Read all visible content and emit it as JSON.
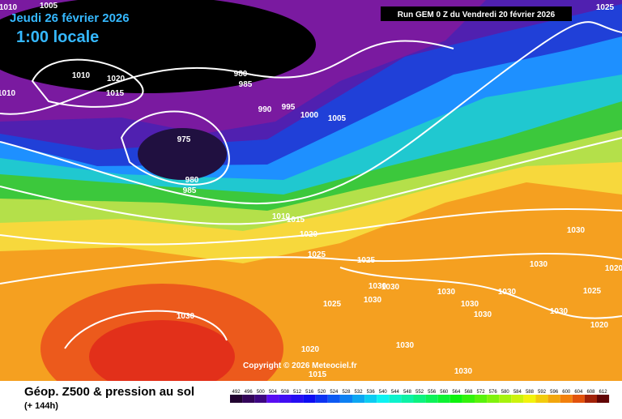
{
  "header": {
    "date": "Jeudi 26 février 2026",
    "time": "1:00 locale",
    "run": "Run GEM 0 Z du Vendredi 20 février 2026"
  },
  "map": {
    "isobar_labels": [
      "1010",
      "1005",
      "1010",
      "1020",
      "1015",
      "1010",
      "980",
      "985",
      "990",
      "995",
      "1000",
      "1005",
      "975",
      "980",
      "985",
      "1010",
      "1015",
      "1020",
      "1025",
      "1025",
      "1030",
      "1030",
      "1025",
      "1030",
      "1030",
      "1030",
      "1030",
      "1030",
      "1030",
      "1030",
      "1025",
      "1030",
      "1020",
      "1030",
      "1030",
      "1020",
      "1015",
      "1030",
      "1020",
      "1025"
    ],
    "copyright": "Copyright © 2026 Meteociel.fr"
  },
  "footer": {
    "title": "Géop. Z500 & pression au sol",
    "subtitle": "(+ 144h)",
    "scale": [
      492,
      496,
      500,
      504,
      508,
      512,
      516,
      520,
      524,
      528,
      532,
      536,
      540,
      544,
      548,
      552,
      556,
      560,
      564,
      568,
      572,
      576,
      580,
      584,
      588,
      592,
      596,
      600,
      604,
      608,
      612
    ]
  }
}
